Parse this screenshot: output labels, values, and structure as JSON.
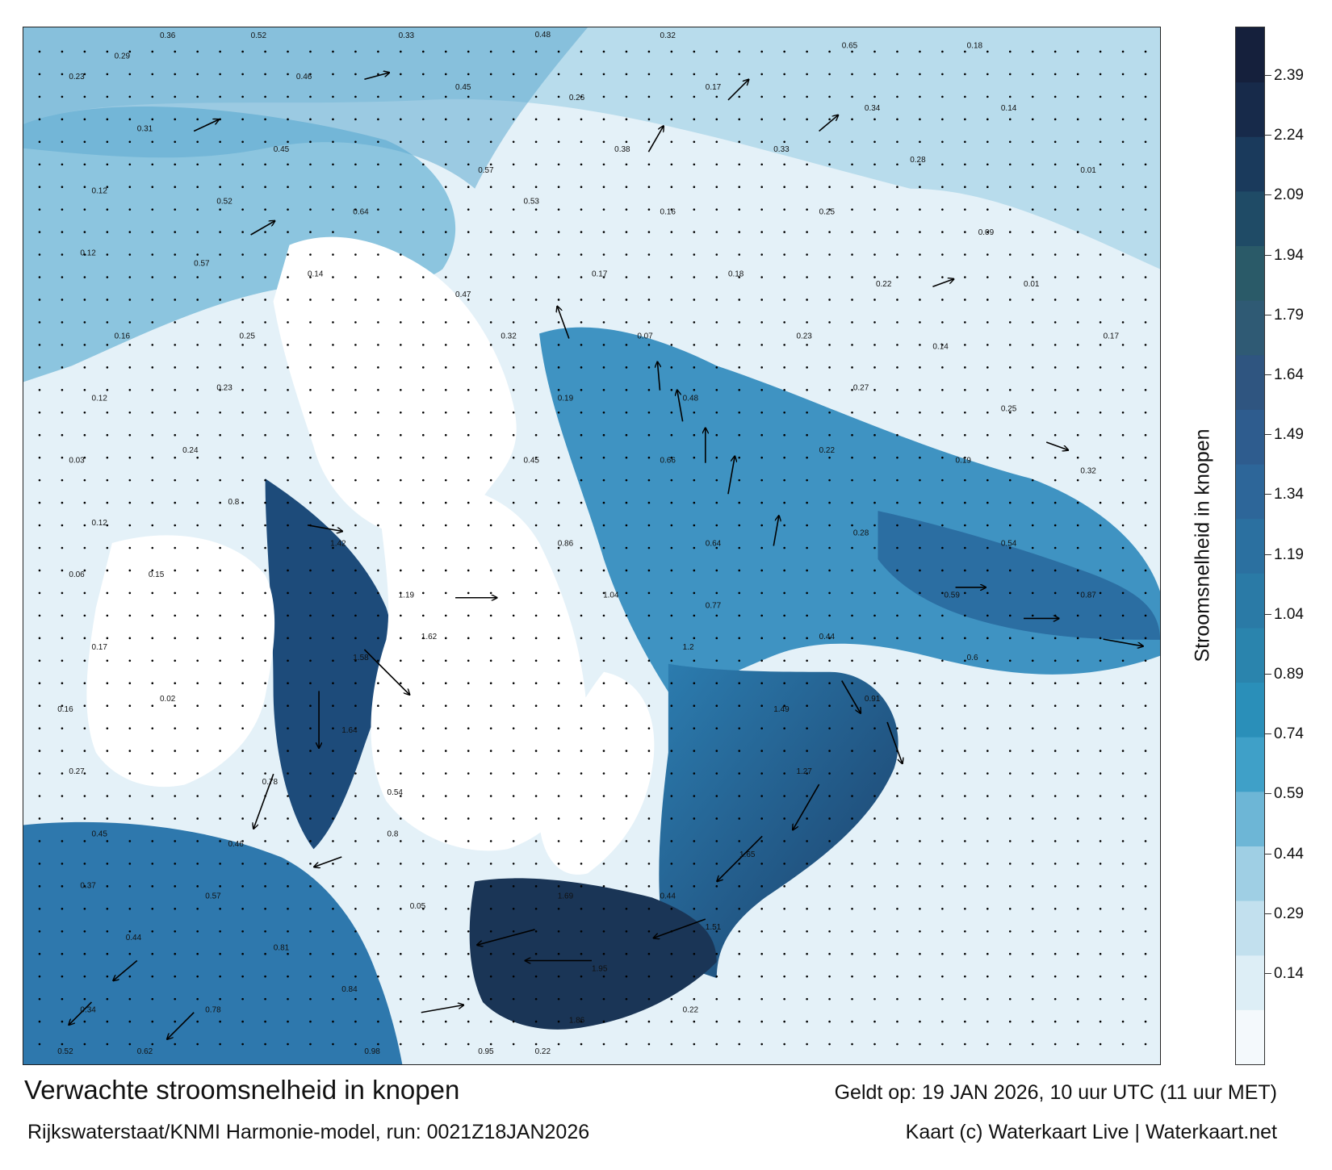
{
  "title": "Verwachte stroomsnelheid in knopen",
  "valid_time": "Geldt op: 19 JAN 2026, 10 uur UTC (11 uur MET)",
  "source": "Rijkswaterstaat/KNMI Harmonie-model, run: 0021Z18JAN2026",
  "credit": "Kaart (c) Waterkaart Live | Waterkaart.net",
  "legend": {
    "title": "Stroomsnelheid in knopen",
    "ticks": [
      "2.39",
      "2.24",
      "2.09",
      "1.94",
      "1.79",
      "1.64",
      "1.49",
      "1.34",
      "1.19",
      "1.04",
      "0.89",
      "0.74",
      "0.59",
      "0.44",
      "0.29",
      "0.14"
    ],
    "colors": [
      "#f4f9fc",
      "#ddeef6",
      "#c2e0ee",
      "#9fcfe4",
      "#6db6d6",
      "#3fa0c8",
      "#2a8fb9",
      "#2a84ad",
      "#2a7aa6",
      "#2b70a0",
      "#2d6699",
      "#2e5c8e",
      "#2f5580",
      "#2f5a74",
      "#2a5a68",
      "#1f4b66",
      "#1a3a5c",
      "#172a4a",
      "#15203c"
    ]
  },
  "arrows": [
    {
      "at": [
        0.62,
        0.07
      ],
      "speed": "0.5",
      "dir": 45
    },
    {
      "at": [
        0.55,
        0.12
      ],
      "speed": "0.53",
      "dir": 60
    },
    {
      "at": [
        0.48,
        0.3
      ],
      "speed": "0.7",
      "dir": 110
    },
    {
      "at": [
        0.56,
        0.35
      ],
      "speed": "0.48",
      "dir": 95
    },
    {
      "at": [
        0.58,
        0.38
      ],
      "speed": "0.61",
      "dir": 100
    },
    {
      "at": [
        0.6,
        0.42
      ],
      "speed": "0.73",
      "dir": 90
    },
    {
      "at": [
        0.62,
        0.45
      ],
      "speed": "0.86",
      "dir": 80
    },
    {
      "at": [
        0.66,
        0.5
      ],
      "speed": "0.56",
      "dir": 80
    },
    {
      "at": [
        0.82,
        0.54
      ],
      "speed": "0.55",
      "dir": 0
    },
    {
      "at": [
        0.88,
        0.57
      ],
      "speed": "0.74",
      "dir": 0
    },
    {
      "at": [
        0.95,
        0.59
      ],
      "speed": "0.94",
      "dir": 350
    },
    {
      "at": [
        0.76,
        0.67
      ],
      "speed": "1.08",
      "dir": 290
    },
    {
      "at": [
        0.7,
        0.73
      ],
      "speed": "1.41",
      "dir": 240
    },
    {
      "at": [
        0.65,
        0.78
      ],
      "speed": "1.85",
      "dir": 225
    },
    {
      "at": [
        0.6,
        0.86
      ],
      "speed": "1.51",
      "dir": 200
    },
    {
      "at": [
        0.5,
        0.9
      ],
      "speed": "1.95",
      "dir": 180
    },
    {
      "at": [
        0.45,
        0.87
      ],
      "speed": "1.69",
      "dir": 195
    },
    {
      "at": [
        0.28,
        0.8
      ],
      "speed": "0.51",
      "dir": 200
    },
    {
      "at": [
        0.22,
        0.72
      ],
      "speed": "1.63",
      "dir": 250
    },
    {
      "at": [
        0.26,
        0.64
      ],
      "speed": "1.58",
      "dir": 270
    },
    {
      "at": [
        0.3,
        0.6
      ],
      "speed": "1.85",
      "dir": 315
    },
    {
      "at": [
        0.38,
        0.55
      ],
      "speed": "0.98",
      "dir": 0
    },
    {
      "at": [
        0.25,
        0.48
      ],
      "speed": "0.74",
      "dir": 350
    },
    {
      "at": [
        0.15,
        0.95
      ],
      "speed": "0.84",
      "dir": 225
    },
    {
      "at": [
        0.1,
        0.9
      ],
      "speed": "0.58",
      "dir": 220
    },
    {
      "at": [
        0.06,
        0.94
      ],
      "speed": "0.62",
      "dir": 225
    },
    {
      "at": [
        0.35,
        0.95
      ],
      "speed": "1.04",
      "dir": 10
    },
    {
      "at": [
        0.2,
        0.2
      ],
      "speed": "0.45",
      "dir": 30
    },
    {
      "at": [
        0.15,
        0.1
      ],
      "speed": "0.44",
      "dir": 25
    },
    {
      "at": [
        0.3,
        0.05
      ],
      "speed": "0.37",
      "dir": 15
    },
    {
      "at": [
        0.7,
        0.1
      ],
      "speed": "0.34",
      "dir": 40
    },
    {
      "at": [
        0.8,
        0.25
      ],
      "speed": "0.24",
      "dir": 20
    },
    {
      "at": [
        0.9,
        0.4
      ],
      "speed": "0.27",
      "dir": 340
    },
    {
      "at": [
        0.72,
        0.63
      ],
      "speed": "0.83",
      "dir": 300
    }
  ],
  "labels": [
    {
      "at": [
        0.12,
        0.01
      ],
      "text": "0.36"
    },
    {
      "at": [
        0.2,
        0.01
      ],
      "text": "0.52"
    },
    {
      "at": [
        0.33,
        0.01
      ],
      "text": "0.33"
    },
    {
      "at": [
        0.45,
        0.0
      ],
      "text": "0.48"
    },
    {
      "at": [
        0.56,
        0.01
      ],
      "text": "0.32"
    },
    {
      "at": [
        0.72,
        0.02
      ],
      "text": "0.65"
    },
    {
      "at": [
        0.83,
        0.02
      ],
      "text": "0.18"
    },
    {
      "at": [
        0.04,
        0.05
      ],
      "text": "0.23"
    },
    {
      "at": [
        0.08,
        0.03
      ],
      "text": "0.29"
    },
    {
      "at": [
        0.24,
        0.05
      ],
      "text": "0.46"
    },
    {
      "at": [
        0.38,
        0.06
      ],
      "text": "0.45"
    },
    {
      "at": [
        0.48,
        0.07
      ],
      "text": "0.26"
    },
    {
      "at": [
        0.6,
        0.06
      ],
      "text": "0.17"
    },
    {
      "at": [
        0.74,
        0.08
      ],
      "text": "0.34"
    },
    {
      "at": [
        0.86,
        0.08
      ],
      "text": "0.14"
    },
    {
      "at": [
        0.1,
        0.1
      ],
      "text": "0.31"
    },
    {
      "at": [
        0.22,
        0.12
      ],
      "text": "0.45"
    },
    {
      "at": [
        0.4,
        0.14
      ],
      "text": "0.57"
    },
    {
      "at": [
        0.52,
        0.12
      ],
      "text": "0.38"
    },
    {
      "at": [
        0.66,
        0.12
      ],
      "text": "0.33"
    },
    {
      "at": [
        0.78,
        0.13
      ],
      "text": "0.28"
    },
    {
      "at": [
        0.93,
        0.14
      ],
      "text": "0.01"
    },
    {
      "at": [
        0.06,
        0.16
      ],
      "text": "0.12"
    },
    {
      "at": [
        0.17,
        0.17
      ],
      "text": "0.52"
    },
    {
      "at": [
        0.29,
        0.18
      ],
      "text": "0.64"
    },
    {
      "at": [
        0.44,
        0.17
      ],
      "text": "0.53"
    },
    {
      "at": [
        0.56,
        0.18
      ],
      "text": "0.16"
    },
    {
      "at": [
        0.7,
        0.18
      ],
      "text": "0.25"
    },
    {
      "at": [
        0.84,
        0.2
      ],
      "text": "0.09"
    },
    {
      "at": [
        0.05,
        0.22
      ],
      "text": "0.12"
    },
    {
      "at": [
        0.15,
        0.23
      ],
      "text": "0.57"
    },
    {
      "at": [
        0.25,
        0.24
      ],
      "text": "0.14"
    },
    {
      "at": [
        0.38,
        0.26
      ],
      "text": "0.47"
    },
    {
      "at": [
        0.5,
        0.24
      ],
      "text": "0.17"
    },
    {
      "at": [
        0.62,
        0.24
      ],
      "text": "0.18"
    },
    {
      "at": [
        0.75,
        0.25
      ],
      "text": "0.22"
    },
    {
      "at": [
        0.88,
        0.25
      ],
      "text": "0.01"
    },
    {
      "at": [
        0.08,
        0.3
      ],
      "text": "0.16"
    },
    {
      "at": [
        0.19,
        0.3
      ],
      "text": "0.25"
    },
    {
      "at": [
        0.42,
        0.3
      ],
      "text": "0.32"
    },
    {
      "at": [
        0.54,
        0.3
      ],
      "text": "0.07"
    },
    {
      "at": [
        0.68,
        0.3
      ],
      "text": "0.23"
    },
    {
      "at": [
        0.8,
        0.31
      ],
      "text": "0.14"
    },
    {
      "at": [
        0.95,
        0.3
      ],
      "text": "0.17"
    },
    {
      "at": [
        0.06,
        0.36
      ],
      "text": "0.12"
    },
    {
      "at": [
        0.17,
        0.35
      ],
      "text": "0.23"
    },
    {
      "at": [
        0.47,
        0.36
      ],
      "text": "0.19"
    },
    {
      "at": [
        0.58,
        0.36
      ],
      "text": "0.48"
    },
    {
      "at": [
        0.73,
        0.35
      ],
      "text": "0.27"
    },
    {
      "at": [
        0.86,
        0.37
      ],
      "text": "0.25"
    },
    {
      "at": [
        0.04,
        0.42
      ],
      "text": "0.03"
    },
    {
      "at": [
        0.14,
        0.41
      ],
      "text": "0.24"
    },
    {
      "at": [
        0.44,
        0.42
      ],
      "text": "0.45"
    },
    {
      "at": [
        0.56,
        0.42
      ],
      "text": "0.66"
    },
    {
      "at": [
        0.7,
        0.41
      ],
      "text": "0.22"
    },
    {
      "at": [
        0.82,
        0.42
      ],
      "text": "0.19"
    },
    {
      "at": [
        0.93,
        0.43
      ],
      "text": "0.32"
    },
    {
      "at": [
        0.06,
        0.48
      ],
      "text": "0.12"
    },
    {
      "at": [
        0.18,
        0.46
      ],
      "text": "0.8"
    },
    {
      "at": [
        0.27,
        0.5
      ],
      "text": "1.42"
    },
    {
      "at": [
        0.47,
        0.5
      ],
      "text": "0.86"
    },
    {
      "at": [
        0.6,
        0.5
      ],
      "text": "0.64"
    },
    {
      "at": [
        0.73,
        0.49
      ],
      "text": "0.28"
    },
    {
      "at": [
        0.86,
        0.5
      ],
      "text": "0.54"
    },
    {
      "at": [
        0.04,
        0.53
      ],
      "text": "0.06"
    },
    {
      "at": [
        0.11,
        0.53
      ],
      "text": "0.15"
    },
    {
      "at": [
        0.33,
        0.55
      ],
      "text": "1.19"
    },
    {
      "at": [
        0.51,
        0.55
      ],
      "text": "1.04"
    },
    {
      "at": [
        0.6,
        0.56
      ],
      "text": "0.77"
    },
    {
      "at": [
        0.81,
        0.55
      ],
      "text": "0.59"
    },
    {
      "at": [
        0.93,
        0.55
      ],
      "text": "0.87"
    },
    {
      "at": [
        0.06,
        0.6
      ],
      "text": "0.17"
    },
    {
      "at": [
        0.29,
        0.61
      ],
      "text": "1.58"
    },
    {
      "at": [
        0.35,
        0.59
      ],
      "text": "1.62"
    },
    {
      "at": [
        0.58,
        0.6
      ],
      "text": "1.2"
    },
    {
      "at": [
        0.7,
        0.59
      ],
      "text": "0.44"
    },
    {
      "at": [
        0.83,
        0.61
      ],
      "text": "0.6"
    },
    {
      "at": [
        0.03,
        0.66
      ],
      "text": "0.16"
    },
    {
      "at": [
        0.12,
        0.65
      ],
      "text": "0.02"
    },
    {
      "at": [
        0.28,
        0.68
      ],
      "text": "1.64"
    },
    {
      "at": [
        0.66,
        0.66
      ],
      "text": "1.49"
    },
    {
      "at": [
        0.74,
        0.65
      ],
      "text": "0.91"
    },
    {
      "at": [
        0.04,
        0.72
      ],
      "text": "0.27"
    },
    {
      "at": [
        0.21,
        0.73
      ],
      "text": "0.78"
    },
    {
      "at": [
        0.32,
        0.74
      ],
      "text": "0.54"
    },
    {
      "at": [
        0.68,
        0.72
      ],
      "text": "1.27"
    },
    {
      "at": [
        0.06,
        0.78
      ],
      "text": "0.45"
    },
    {
      "at": [
        0.18,
        0.79
      ],
      "text": "0.46"
    },
    {
      "at": [
        0.32,
        0.78
      ],
      "text": "0.8"
    },
    {
      "at": [
        0.63,
        0.8
      ],
      "text": "1.65"
    },
    {
      "at": [
        0.05,
        0.83
      ],
      "text": "0.37"
    },
    {
      "at": [
        0.16,
        0.84
      ],
      "text": "0.57"
    },
    {
      "at": [
        0.34,
        0.85
      ],
      "text": "0.05"
    },
    {
      "at": [
        0.47,
        0.84
      ],
      "text": "1.69"
    },
    {
      "at": [
        0.56,
        0.84
      ],
      "text": "0.44"
    },
    {
      "at": [
        0.09,
        0.88
      ],
      "text": "0.44"
    },
    {
      "at": [
        0.22,
        0.89
      ],
      "text": "0.81"
    },
    {
      "at": [
        0.5,
        0.91
      ],
      "text": "1.95"
    },
    {
      "at": [
        0.6,
        0.87
      ],
      "text": "1.51"
    },
    {
      "at": [
        0.05,
        0.95
      ],
      "text": "0.34"
    },
    {
      "at": [
        0.16,
        0.95
      ],
      "text": "0.78"
    },
    {
      "at": [
        0.28,
        0.93
      ],
      "text": "0.84"
    },
    {
      "at": [
        0.48,
        0.96
      ],
      "text": "1.86"
    },
    {
      "at": [
        0.58,
        0.95
      ],
      "text": "0.22"
    },
    {
      "at": [
        0.03,
        0.99
      ],
      "text": "0.52"
    },
    {
      "at": [
        0.1,
        0.99
      ],
      "text": "0.62"
    },
    {
      "at": [
        0.3,
        0.99
      ],
      "text": "0.98"
    },
    {
      "at": [
        0.4,
        0.99
      ],
      "text": "0.95"
    },
    {
      "at": [
        0.45,
        0.99
      ],
      "text": "0.22"
    }
  ]
}
